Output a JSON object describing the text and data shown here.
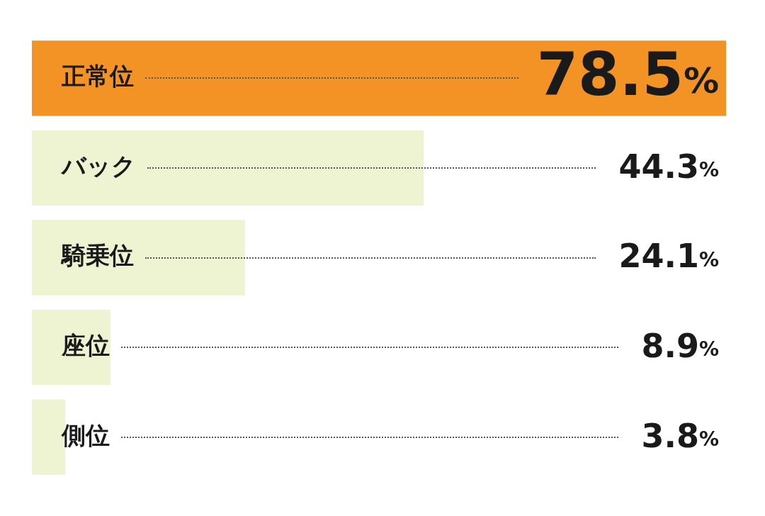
{
  "chart_data": {
    "type": "bar",
    "orientation": "horizontal",
    "categories": [
      "正常位",
      "バック",
      "騎乗位",
      "座位",
      "側位"
    ],
    "values": [
      78.5,
      44.3,
      24.1,
      8.9,
      3.8
    ],
    "colors": [
      "#f39325",
      "#eef4d2",
      "#eef4d2",
      "#eef4d2",
      "#eef4d2"
    ],
    "value_labels": [
      "78.5%",
      "44.3%",
      "24.1%",
      "8.9%",
      "3.8%"
    ],
    "xlim": [
      0,
      78.5
    ],
    "tick_labels": "y"
  }
}
